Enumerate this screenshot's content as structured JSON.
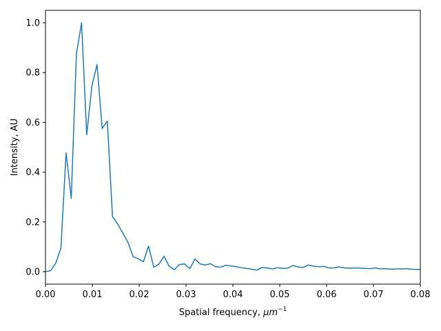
{
  "chart_data": {
    "type": "line",
    "title": "",
    "xlabel": "Spatial frequency, ",
    "xlabel_unit": "μm",
    "xlabel_unit_exp": "−1",
    "ylabel": "Intensity, AU",
    "xlim": [
      0.0,
      0.08
    ],
    "ylim": [
      -0.05,
      1.05
    ],
    "xticks": [
      0.0,
      0.01,
      0.02,
      0.03,
      0.04,
      0.05,
      0.06,
      0.07,
      0.08
    ],
    "xtick_labels": [
      "0.00",
      "0.01",
      "0.02",
      "0.03",
      "0.04",
      "0.05",
      "0.06",
      "0.07",
      "0.08"
    ],
    "yticks": [
      0.0,
      0.2,
      0.4,
      0.6,
      0.8,
      1.0
    ],
    "ytick_labels": [
      "0.0",
      "0.2",
      "0.4",
      "0.6",
      "0.8",
      "1.0"
    ],
    "grid": false,
    "legend": "none",
    "colors": {
      "line": "#1f77b4",
      "axes": "#000000"
    },
    "series": [
      {
        "x": [
          0.0,
          0.0011,
          0.0022,
          0.0033,
          0.0044,
          0.0055,
          0.0066,
          0.0077,
          0.0088,
          0.0099,
          0.011,
          0.0121,
          0.0132,
          0.0143,
          0.0154,
          0.0165,
          0.0176,
          0.0187,
          0.0198,
          0.0209,
          0.022,
          0.0231,
          0.0242,
          0.0253,
          0.0264,
          0.0275,
          0.0286,
          0.0297,
          0.0308,
          0.0319,
          0.033,
          0.0341,
          0.0352,
          0.0363,
          0.0374,
          0.0385,
          0.0396,
          0.0407,
          0.0418,
          0.0429,
          0.044,
          0.0451,
          0.0462,
          0.0473,
          0.0484,
          0.0495,
          0.0506,
          0.0517,
          0.0528,
          0.0539,
          0.055,
          0.0561,
          0.0572,
          0.0583,
          0.0594,
          0.0605,
          0.0616,
          0.0627,
          0.0638,
          0.0649,
          0.066,
          0.0671,
          0.0682,
          0.0693,
          0.0704,
          0.0715,
          0.0726,
          0.0737,
          0.0748,
          0.0759,
          0.077,
          0.0781,
          0.0792,
          0.08
        ],
        "y": [
          0.0,
          0.004,
          0.035,
          0.095,
          0.478,
          0.295,
          0.875,
          1.0,
          0.55,
          0.745,
          0.832,
          0.575,
          0.605,
          0.222,
          0.192,
          0.155,
          0.118,
          0.06,
          0.052,
          0.04,
          0.103,
          0.018,
          0.03,
          0.062,
          0.022,
          0.008,
          0.029,
          0.031,
          0.012,
          0.051,
          0.031,
          0.027,
          0.032,
          0.02,
          0.018,
          0.026,
          0.023,
          0.02,
          0.016,
          0.013,
          0.01,
          0.006,
          0.017,
          0.015,
          0.011,
          0.016,
          0.013,
          0.014,
          0.025,
          0.019,
          0.017,
          0.027,
          0.022,
          0.02,
          0.021,
          0.015,
          0.015,
          0.019,
          0.015,
          0.014,
          0.015,
          0.014,
          0.013,
          0.012,
          0.015,
          0.011,
          0.012,
          0.01,
          0.011,
          0.011,
          0.012,
          0.01,
          0.009,
          0.009
        ]
      }
    ]
  }
}
